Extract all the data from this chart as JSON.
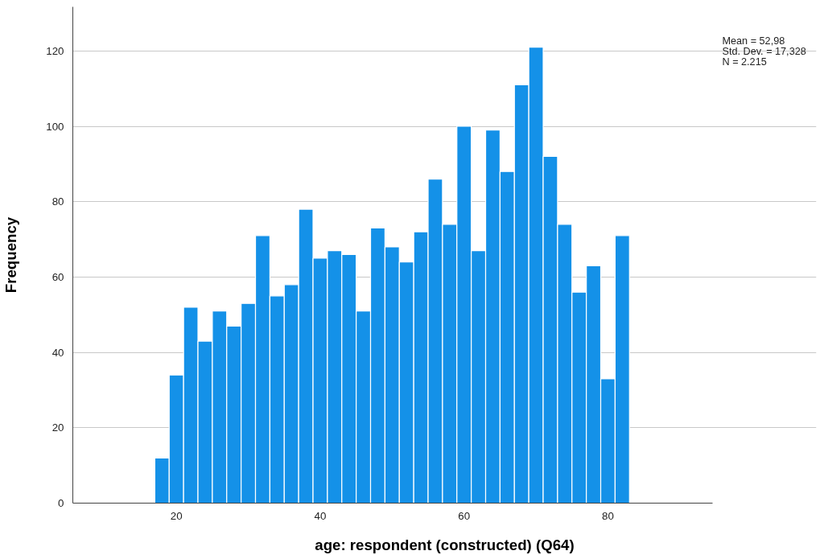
{
  "chart_data": {
    "type": "histogram",
    "xlabel": "age: respondent (constructed) (Q64)",
    "ylabel": "Frequency",
    "bins": [
      17,
      19,
      21,
      23,
      25,
      27,
      29,
      31,
      33,
      35,
      37,
      39,
      41,
      43,
      45,
      47,
      49,
      51,
      53,
      55,
      57,
      59,
      61,
      63,
      65,
      67,
      69,
      71,
      73,
      75,
      77,
      79,
      81,
      83
    ],
    "values": [
      12,
      34,
      52,
      43,
      51,
      47,
      53,
      71,
      55,
      58,
      78,
      65,
      67,
      66,
      51,
      73,
      68,
      64,
      72,
      86,
      74,
      100,
      67,
      99,
      88,
      111,
      121,
      92,
      74,
      56,
      63,
      33,
      71
    ],
    "color": "#1491e8",
    "xlim": [
      5.6,
      94.5
    ],
    "ylim": [
      0,
      131.7
    ],
    "xticks": [
      20,
      40,
      60,
      80
    ],
    "yticks": [
      0,
      20,
      40,
      60,
      80,
      100,
      120
    ],
    "grid": "y",
    "annotations": [
      "Mean = 52,98",
      "Std. Dev. = 17,328",
      "N = 2.215"
    ]
  }
}
